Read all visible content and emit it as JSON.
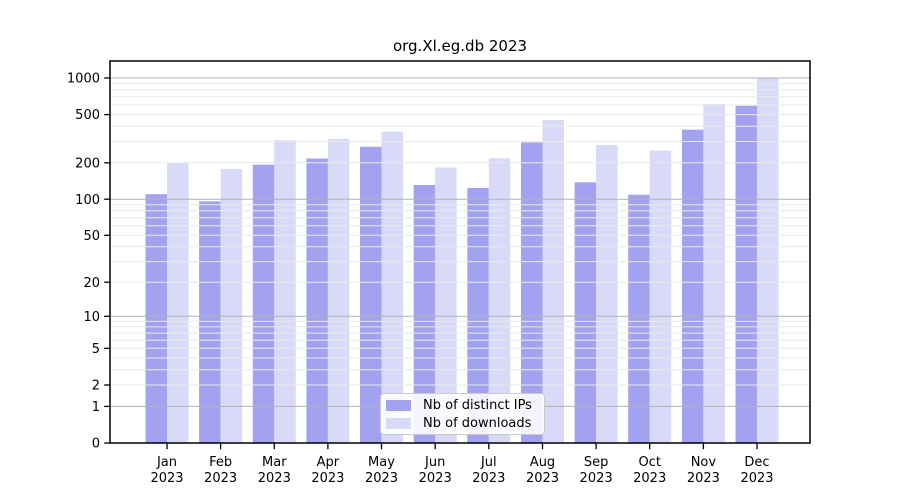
{
  "chart_data": {
    "type": "bar",
    "title": "org.Xl.eg.db 2023",
    "categories": [
      "Jan 2023",
      "Feb 2023",
      "Mar 2023",
      "Apr 2023",
      "May 2023",
      "Jun 2023",
      "Jul 2023",
      "Aug 2023",
      "Sep 2023",
      "Oct 2023",
      "Nov 2023",
      "Dec 2023"
    ],
    "series": [
      {
        "name": "Nb of distinct IPs",
        "color": "#a2a2f0",
        "values": [
          110,
          96,
          193,
          217,
          271,
          131,
          124,
          295,
          138,
          109,
          375,
          590
        ]
      },
      {
        "name": "Nb of downloads",
        "color": "#d9d9f8",
        "values": [
          200,
          178,
          308,
          315,
          362,
          183,
          218,
          450,
          280,
          253,
          610,
          1000
        ]
      }
    ],
    "xlabel": "",
    "ylabel": "",
    "y_scale": "log1p",
    "y_ticks": [
      0,
      1,
      2,
      5,
      10,
      20,
      50,
      100,
      200,
      500,
      1000
    ],
    "ylim": [
      0,
      1000
    ],
    "grid": "major+minor, horizontal, drawn over bars",
    "grid_major_color": "#b2b2b2",
    "grid_minor_color": "#e9e9e9",
    "axis_color": "#000000",
    "legend_position": "lower center"
  }
}
